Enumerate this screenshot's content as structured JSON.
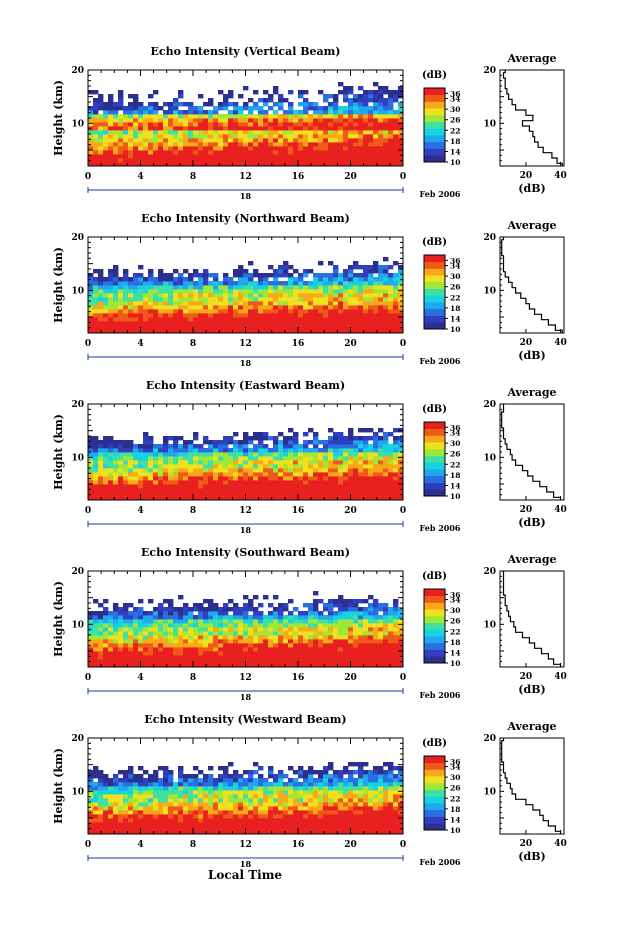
{
  "figure": {
    "xlabel": "Local Time",
    "date_label": "Feb 2006",
    "day_label": "18",
    "avg_title": "Average",
    "avg_xlabel": "(dB)",
    "cbar_label": "(dB)",
    "ylabel": "Height (km)"
  },
  "colors": {
    "scale": [
      "#2b2f8f",
      "#2f3fbf",
      "#2a6fe0",
      "#1fa7f0",
      "#17d3e0",
      "#3fe0a0",
      "#a0e838",
      "#f0e020",
      "#f8a818",
      "#f05a18",
      "#e82020"
    ],
    "missing": "#ffffff",
    "line": "#000000"
  },
  "chart_data": [
    {
      "type": "heatmap",
      "title": "Echo Intensity (Vertical Beam)",
      "x_range": [
        0,
        24
      ],
      "x_ticks": [
        "0",
        "4",
        "8",
        "12",
        "16",
        "20",
        "0"
      ],
      "y_range": [
        2,
        20
      ],
      "y_ticks": [
        "20",
        "10"
      ],
      "colorbar_ticks": [
        "36",
        "34",
        "30",
        "26",
        "22",
        "18",
        "14",
        "10"
      ],
      "colorbar_range": [
        10,
        38
      ],
      "average_profile": {
        "x_ticks": [
          "20",
          "40"
        ],
        "xlim": [
          5,
          42
        ],
        "ylim": [
          2,
          20
        ],
        "height_km": [
          2,
          3,
          4,
          5,
          6,
          7,
          8,
          9,
          10,
          11,
          12,
          13,
          14,
          15,
          16,
          17,
          18,
          19,
          20
        ],
        "db": [
          41,
          38,
          35,
          30,
          27,
          25,
          24,
          22,
          18,
          24,
          20,
          14,
          12,
          10,
          9,
          8,
          8,
          7,
          8
        ]
      }
    },
    {
      "type": "heatmap",
      "title": "Echo Intensity (Northward Beam)",
      "x_range": [
        0,
        24
      ],
      "x_ticks": [
        "0",
        "4",
        "8",
        "12",
        "16",
        "20",
        "0"
      ],
      "y_range": [
        2,
        20
      ],
      "y_ticks": [
        "20",
        "10"
      ],
      "colorbar_ticks": [
        "36",
        "34",
        "30",
        "26",
        "22",
        "18",
        "14",
        "10"
      ],
      "colorbar_range": [
        10,
        38
      ],
      "average_profile": {
        "x_ticks": [
          "20",
          "40"
        ],
        "xlim": [
          5,
          42
        ],
        "ylim": [
          2,
          20
        ],
        "height_km": [
          2,
          3,
          4,
          5,
          6,
          7,
          8,
          9,
          10,
          11,
          12,
          13,
          14,
          15,
          16,
          17,
          18,
          19,
          20
        ],
        "db": [
          41,
          37,
          33,
          29,
          25,
          22,
          20,
          17,
          14,
          12,
          10,
          8,
          7,
          7,
          7,
          6,
          6,
          6,
          7
        ]
      }
    },
    {
      "type": "heatmap",
      "title": "Echo Intensity (Eastward Beam)",
      "x_range": [
        0,
        24
      ],
      "x_ticks": [
        "0",
        "4",
        "8",
        "12",
        "16",
        "20",
        "0"
      ],
      "y_range": [
        2,
        20
      ],
      "y_ticks": [
        "20",
        "10"
      ],
      "colorbar_ticks": [
        "36",
        "34",
        "30",
        "26",
        "22",
        "18",
        "14",
        "10"
      ],
      "colorbar_range": [
        10,
        38
      ],
      "average_profile": {
        "x_ticks": [
          "20",
          "40"
        ],
        "xlim": [
          5,
          42
        ],
        "ylim": [
          2,
          20
        ],
        "height_km": [
          2,
          3,
          4,
          5,
          6,
          7,
          8,
          9,
          10,
          11,
          12,
          13,
          14,
          15,
          16,
          17,
          18,
          19,
          20
        ],
        "db": [
          40,
          36,
          32,
          28,
          24,
          21,
          18,
          14,
          12,
          11,
          9,
          8,
          7,
          7,
          6,
          6,
          6,
          7,
          7
        ]
      }
    },
    {
      "type": "heatmap",
      "title": "Echo Intensity (Southward Beam)",
      "x_range": [
        0,
        24
      ],
      "x_ticks": [
        "0",
        "4",
        "8",
        "12",
        "16",
        "20",
        "0"
      ],
      "y_range": [
        2,
        20
      ],
      "y_ticks": [
        "20",
        "10"
      ],
      "colorbar_ticks": [
        "36",
        "34",
        "30",
        "26",
        "22",
        "18",
        "14",
        "10"
      ],
      "colorbar_range": [
        10,
        38
      ],
      "average_profile": {
        "x_ticks": [
          "20",
          "40"
        ],
        "xlim": [
          5,
          42
        ],
        "ylim": [
          2,
          20
        ],
        "height_km": [
          2,
          3,
          4,
          5,
          6,
          7,
          8,
          9,
          10,
          11,
          12,
          13,
          14,
          15,
          16,
          17,
          18,
          19,
          20
        ],
        "db": [
          40,
          36,
          33,
          29,
          25,
          22,
          18,
          14,
          13,
          11,
          10,
          9,
          8,
          8,
          7,
          7,
          7,
          7,
          7
        ]
      }
    },
    {
      "type": "heatmap",
      "title": "Echo Intensity (Westward Beam)",
      "x_range": [
        0,
        24
      ],
      "x_ticks": [
        "0",
        "4",
        "8",
        "12",
        "16",
        "20",
        "0"
      ],
      "y_range": [
        2,
        20
      ],
      "y_ticks": [
        "20",
        "10"
      ],
      "colorbar_ticks": [
        "36",
        "34",
        "30",
        "26",
        "22",
        "18",
        "14",
        "10"
      ],
      "colorbar_range": [
        10,
        38
      ],
      "average_profile": {
        "x_ticks": [
          "20",
          "40"
        ],
        "xlim": [
          5,
          42
        ],
        "ylim": [
          2,
          20
        ],
        "height_km": [
          2,
          3,
          4,
          5,
          6,
          7,
          8,
          9,
          10,
          11,
          12,
          13,
          14,
          15,
          16,
          17,
          18,
          19,
          20
        ],
        "db": [
          40,
          37,
          33,
          30,
          28,
          24,
          20,
          14,
          12,
          11,
          9,
          8,
          7,
          7,
          6,
          6,
          6,
          6,
          7
        ]
      }
    }
  ]
}
